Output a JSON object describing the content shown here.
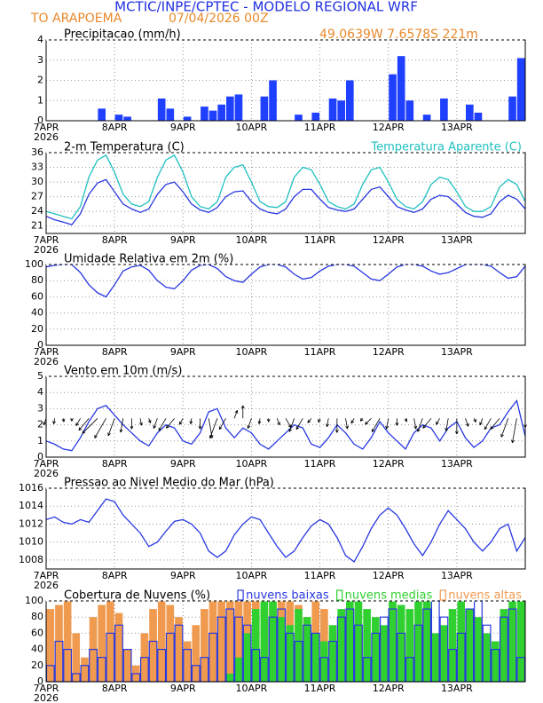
{
  "header": {
    "title": "MCTIC/INPE/CPTEC - MODELO REGIONAL WRF",
    "location": "TO ARAPOEMA",
    "date": "07/04/2026 00Z",
    "coords": "49.0639W 7.6578S 221m"
  },
  "year": "2026",
  "chart_data": [
    {
      "type": "bar",
      "title": "Precipitacao (mm/h)",
      "x": [
        0,
        3,
        6,
        9,
        12,
        15,
        18,
        21,
        24,
        27,
        30,
        33,
        36,
        39,
        42,
        45,
        48,
        51,
        54,
        57,
        60,
        63,
        66,
        69,
        72,
        75,
        78,
        81,
        84,
        87,
        90,
        93,
        96,
        99,
        102,
        105,
        108,
        111,
        114,
        117,
        120,
        123,
        126,
        129,
        132,
        135,
        138,
        141,
        144,
        147,
        150,
        153,
        156,
        159,
        162,
        165
      ],
      "series": [
        {
          "color": "#2040ff",
          "values": [
            0,
            0,
            0,
            0,
            0,
            0,
            0.6,
            0,
            0.3,
            0.2,
            0,
            0,
            0,
            1.1,
            0.6,
            0,
            0.2,
            0,
            0.7,
            0.5,
            0.8,
            1.2,
            1.3,
            0,
            0,
            1.2,
            2.0,
            0,
            0,
            0.3,
            0,
            0.4,
            0,
            1.1,
            1.0,
            2.0,
            0,
            0,
            0,
            0,
            2.3,
            3.2,
            1.0,
            0,
            0.3,
            0,
            1.1,
            0,
            0,
            0.8,
            0.4,
            0,
            0,
            0,
            1.2,
            3.1
          ]
        }
      ],
      "xlim": [
        0,
        168
      ],
      "xticks": [
        {
          "value": 0,
          "label": "7APR"
        },
        {
          "value": 24,
          "label": "8APR"
        },
        {
          "value": 48,
          "label": "9APR"
        },
        {
          "value": 72,
          "label": "10APR"
        },
        {
          "value": 96,
          "label": "11APR"
        },
        {
          "value": 120,
          "label": "12APR"
        },
        {
          "value": 144,
          "label": "13APR"
        }
      ],
      "ylim": [
        0,
        4
      ],
      "yticks": [
        0,
        1,
        2,
        3,
        4
      ],
      "grid": true
    },
    {
      "type": "line",
      "title": "2-m Temperatura (C)",
      "x": [
        0,
        3,
        6,
        9,
        12,
        15,
        18,
        21,
        24,
        27,
        30,
        33,
        36,
        39,
        42,
        45,
        48,
        51,
        54,
        57,
        60,
        63,
        66,
        69,
        72,
        75,
        78,
        81,
        84,
        87,
        90,
        93,
        96,
        99,
        102,
        105,
        108,
        111,
        114,
        117,
        120,
        123,
        126,
        129,
        132,
        135,
        138,
        141,
        144,
        147,
        150,
        153,
        156,
        159,
        162,
        165,
        168
      ],
      "series": [
        {
          "color": "#2838e0",
          "values": [
            23.0,
            22.3,
            21.8,
            21.3,
            23.5,
            27.5,
            29.8,
            30.5,
            28.0,
            25.5,
            24.5,
            23.8,
            24.5,
            27.5,
            29.5,
            30.0,
            28.0,
            25.5,
            24.3,
            23.8,
            24.8,
            27.0,
            28.0,
            28.2,
            26.0,
            24.5,
            23.8,
            23.5,
            24.5,
            27.0,
            28.5,
            28.5,
            26.5,
            24.8,
            24.3,
            24.0,
            24.5,
            26.5,
            28.5,
            29.0,
            27.0,
            25.0,
            24.3,
            23.8,
            24.5,
            26.5,
            27.3,
            27.0,
            25.5,
            23.8,
            23.0,
            22.8,
            23.5,
            26.0,
            27.3,
            26.5,
            24.5
          ]
        },
        {
          "name": "Temperatura Aparente (C)",
          "color": "#20c0c0",
          "values": [
            24.0,
            23.5,
            23.0,
            22.5,
            25.0,
            31.0,
            34.5,
            35.5,
            32.0,
            27.5,
            25.5,
            25.0,
            26.0,
            31.0,
            34.5,
            35.5,
            32.0,
            27.0,
            25.0,
            24.5,
            26.0,
            31.0,
            33.0,
            33.5,
            30.0,
            26.0,
            25.0,
            24.8,
            26.0,
            31.0,
            33.0,
            32.5,
            29.5,
            26.0,
            25.0,
            24.5,
            25.5,
            29.5,
            32.5,
            33.0,
            30.0,
            26.5,
            25.0,
            24.5,
            26.0,
            29.5,
            31.0,
            30.5,
            28.0,
            25.0,
            24.0,
            24.0,
            25.0,
            29.0,
            30.5,
            29.5,
            26.0
          ]
        }
      ],
      "legend": "top-right",
      "xlim": [
        0,
        168
      ],
      "xticks": [
        {
          "value": 0,
          "label": "7APR"
        },
        {
          "value": 24,
          "label": "8APR"
        },
        {
          "value": 48,
          "label": "9APR"
        },
        {
          "value": 72,
          "label": "10APR"
        },
        {
          "value": 96,
          "label": "11APR"
        },
        {
          "value": 120,
          "label": "12APR"
        },
        {
          "value": 144,
          "label": "13APR"
        }
      ],
      "ylim": [
        19.5,
        36
      ],
      "yticks": [
        21,
        24,
        27,
        30,
        33,
        36
      ],
      "grid": true
    },
    {
      "type": "line",
      "title": "Umidade Relativa em 2m (%)",
      "x": [
        0,
        3,
        6,
        9,
        12,
        15,
        18,
        21,
        24,
        27,
        30,
        33,
        36,
        39,
        42,
        45,
        48,
        51,
        54,
        57,
        60,
        63,
        66,
        69,
        72,
        75,
        78,
        81,
        84,
        87,
        90,
        93,
        96,
        99,
        102,
        105,
        108,
        111,
        114,
        117,
        120,
        123,
        126,
        129,
        132,
        135,
        138,
        141,
        144,
        147,
        150,
        153,
        156,
        159,
        162,
        165,
        168
      ],
      "series": [
        {
          "color": "#2838e0",
          "values": [
            97,
            99,
            100,
            100,
            90,
            75,
            65,
            60,
            75,
            92,
            97,
            99,
            93,
            80,
            72,
            70,
            80,
            93,
            99,
            100,
            95,
            85,
            80,
            78,
            88,
            97,
            100,
            100,
            97,
            88,
            82,
            84,
            92,
            98,
            100,
            100,
            98,
            90,
            82,
            80,
            88,
            97,
            100,
            100,
            98,
            92,
            88,
            90,
            95,
            100,
            100,
            100,
            98,
            90,
            83,
            85,
            98
          ]
        }
      ],
      "xlim": [
        0,
        168
      ],
      "xticks": [
        {
          "value": 0,
          "label": "7APR"
        },
        {
          "value": 24,
          "label": "8APR"
        },
        {
          "value": 48,
          "label": "9APR"
        },
        {
          "value": 72,
          "label": "10APR"
        },
        {
          "value": 96,
          "label": "11APR"
        },
        {
          "value": 120,
          "label": "12APR"
        },
        {
          "value": 144,
          "label": "13APR"
        }
      ],
      "ylim": [
        0,
        100
      ],
      "yticks": [
        0,
        20,
        40,
        60,
        80,
        100
      ],
      "grid": true
    },
    {
      "type": "line",
      "title": "Vento em 10m (m/s)",
      "x": [
        0,
        3,
        6,
        9,
        12,
        15,
        18,
        21,
        24,
        27,
        30,
        33,
        36,
        39,
        42,
        45,
        48,
        51,
        54,
        57,
        60,
        63,
        66,
        69,
        72,
        75,
        78,
        81,
        84,
        87,
        90,
        93,
        96,
        99,
        102,
        105,
        108,
        111,
        114,
        117,
        120,
        123,
        126,
        129,
        132,
        135,
        138,
        141,
        144,
        147,
        150,
        153,
        156,
        159,
        162,
        165,
        168
      ],
      "series": [
        {
          "color": "#2838e0",
          "values": [
            1.0,
            0.8,
            0.5,
            0.4,
            1.2,
            2.2,
            3.0,
            3.2,
            2.6,
            2.0,
            1.5,
            1.0,
            0.7,
            1.5,
            2.0,
            1.8,
            1.0,
            0.8,
            1.5,
            2.8,
            3.0,
            1.8,
            1.2,
            1.8,
            1.5,
            0.8,
            0.5,
            1.0,
            1.5,
            2.0,
            1.8,
            0.8,
            0.6,
            1.2,
            2.0,
            1.5,
            0.8,
            0.5,
            1.2,
            2.2,
            1.5,
            1.0,
            0.5,
            1.5,
            2.0,
            1.8,
            1.0,
            1.8,
            2.2,
            1.2,
            0.6,
            1.0,
            1.8,
            2.0,
            2.8,
            3.5,
            1.3
          ]
        }
      ],
      "wind_direction": [
        20,
        10,
        350,
        0,
        30,
        40,
        45,
        30,
        20,
        10,
        0,
        350,
        340,
        20,
        30,
        40,
        30,
        10,
        0,
        350,
        20,
        30,
        200,
        180,
        20,
        10,
        0,
        340,
        330,
        20,
        30,
        40,
        20,
        10,
        0,
        350,
        30,
        40,
        45,
        30,
        10,
        0,
        340,
        350,
        20,
        40,
        30,
        10,
        0,
        340,
        330,
        20,
        30,
        40,
        20,
        10,
        0
      ],
      "xlim": [
        0,
        168
      ],
      "xticks": [
        {
          "value": 0,
          "label": "7APR"
        },
        {
          "value": 24,
          "label": "8APR"
        },
        {
          "value": 48,
          "label": "9APR"
        },
        {
          "value": 72,
          "label": "10APR"
        },
        {
          "value": 96,
          "label": "11APR"
        },
        {
          "value": 120,
          "label": "12APR"
        },
        {
          "value": 144,
          "label": "13APR"
        }
      ],
      "ylim": [
        0,
        5
      ],
      "yticks": [
        0,
        1,
        2,
        3,
        4,
        5
      ],
      "grid": true
    },
    {
      "type": "line",
      "title": "Pressao ao Nivel Medio do Mar (hPa)",
      "x": [
        0,
        3,
        6,
        9,
        12,
        15,
        18,
        21,
        24,
        27,
        30,
        33,
        36,
        39,
        42,
        45,
        48,
        51,
        54,
        57,
        60,
        63,
        66,
        69,
        72,
        75,
        78,
        81,
        84,
        87,
        90,
        93,
        96,
        99,
        102,
        105,
        108,
        111,
        114,
        117,
        120,
        123,
        126,
        129,
        132,
        135,
        138,
        141,
        144,
        147,
        150,
        153,
        156,
        159,
        162,
        165,
        168
      ],
      "series": [
        {
          "color": "#2838e0",
          "values": [
            1012.5,
            1012.8,
            1012.2,
            1012.0,
            1012.5,
            1012.2,
            1013.5,
            1014.8,
            1014.5,
            1013.0,
            1012.0,
            1011.0,
            1009.5,
            1010.0,
            1011.2,
            1012.3,
            1012.5,
            1012.0,
            1011.0,
            1009.0,
            1008.3,
            1009.0,
            1010.8,
            1012.0,
            1012.8,
            1012.5,
            1011.0,
            1009.5,
            1008.3,
            1009.0,
            1010.5,
            1011.8,
            1012.5,
            1012.0,
            1010.5,
            1008.5,
            1007.8,
            1009.5,
            1011.5,
            1013.0,
            1013.8,
            1013.0,
            1011.5,
            1009.8,
            1008.5,
            1010.0,
            1012.0,
            1013.5,
            1012.5,
            1011.5,
            1010.0,
            1009.0,
            1010.0,
            1011.5,
            1012.0,
            1009.0,
            1010.5
          ]
        }
      ],
      "xlim": [
        0,
        168
      ],
      "xticks": [
        {
          "value": 0,
          "label": "7APR"
        },
        {
          "value": 24,
          "label": "8APR"
        },
        {
          "value": 48,
          "label": "9APR"
        },
        {
          "value": 72,
          "label": "10APR"
        },
        {
          "value": 96,
          "label": "11APR"
        },
        {
          "value": 120,
          "label": "12APR"
        },
        {
          "value": 144,
          "label": "13APR"
        }
      ],
      "ylim": [
        1007,
        1016
      ],
      "yticks": [
        1008,
        1010,
        1012,
        1014,
        1016
      ],
      "grid": true
    },
    {
      "type": "bar",
      "title": "Cobertura de Nuvens (%)",
      "x": [
        0,
        3,
        6,
        9,
        12,
        15,
        18,
        21,
        24,
        27,
        30,
        33,
        36,
        39,
        42,
        45,
        48,
        51,
        54,
        57,
        60,
        63,
        66,
        69,
        72,
        75,
        78,
        81,
        84,
        87,
        90,
        93,
        96,
        99,
        102,
        105,
        108,
        111,
        114,
        117,
        120,
        123,
        126,
        129,
        132,
        135,
        138,
        141,
        144,
        147,
        150,
        153,
        156,
        159,
        162,
        165
      ],
      "series": [
        {
          "name": "nuvens baixas",
          "color": "#2838e0",
          "style": "outline",
          "values": [
            20,
            50,
            40,
            10,
            20,
            40,
            30,
            60,
            70,
            40,
            10,
            30,
            50,
            40,
            60,
            70,
            40,
            20,
            30,
            60,
            80,
            90,
            80,
            70,
            40,
            30,
            80,
            90,
            60,
            50,
            70,
            60,
            30,
            50,
            80,
            90,
            70,
            30,
            60,
            80,
            90,
            60,
            30,
            70,
            90,
            100,
            80,
            40,
            60,
            90,
            100,
            70,
            40,
            80,
            90,
            30
          ]
        },
        {
          "name": "nuvens medias",
          "color": "#30d030",
          "values": [
            0,
            0,
            0,
            0,
            0,
            0,
            0,
            0,
            0,
            0,
            0,
            0,
            0,
            0,
            0,
            0,
            0,
            0,
            0,
            0,
            0,
            10,
            30,
            60,
            90,
            100,
            100,
            80,
            70,
            90,
            80,
            60,
            50,
            70,
            90,
            100,
            100,
            90,
            80,
            70,
            100,
            95,
            90,
            100,
            100,
            60,
            70,
            90,
            100,
            90,
            80,
            60,
            50,
            90,
            100,
            100
          ]
        },
        {
          "name": "nuvens altas",
          "color": "#f09a50",
          "values": [
            90,
            95,
            100,
            60,
            30,
            80,
            95,
            100,
            85,
            40,
            20,
            60,
            90,
            100,
            95,
            80,
            50,
            70,
            90,
            100,
            100,
            100,
            100,
            100,
            100,
            90,
            100,
            100,
            100,
            95,
            80,
            100,
            90,
            60,
            40,
            60,
            30,
            20,
            10,
            0,
            0,
            10,
            20,
            30,
            10,
            0,
            0,
            10,
            20,
            30,
            10,
            0,
            0,
            5,
            10,
            20
          ]
        }
      ],
      "legend": "top-right",
      "xlim": [
        0,
        168
      ],
      "xticks": [
        {
          "value": 0,
          "label": "7APR"
        },
        {
          "value": 24,
          "label": "8APR"
        },
        {
          "value": 48,
          "label": "9APR"
        },
        {
          "value": 72,
          "label": "10APR"
        },
        {
          "value": 96,
          "label": "11APR"
        },
        {
          "value": 120,
          "label": "12APR"
        },
        {
          "value": 144,
          "label": "13APR"
        }
      ],
      "ylim": [
        0,
        100
      ],
      "yticks": [
        0,
        20,
        40,
        60,
        80,
        100
      ],
      "grid": true
    }
  ]
}
